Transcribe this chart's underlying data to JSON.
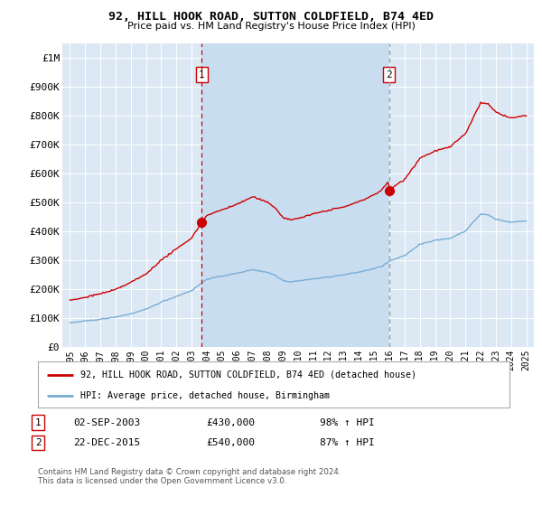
{
  "title": "92, HILL HOOK ROAD, SUTTON COLDFIELD, B74 4ED",
  "subtitle": "Price paid vs. HM Land Registry's House Price Index (HPI)",
  "legend_line1": "92, HILL HOOK ROAD, SUTTON COLDFIELD, B74 4ED (detached house)",
  "legend_line2": "HPI: Average price, detached house, Birmingham",
  "transaction1_date": "02-SEP-2003",
  "transaction1_price": "£430,000",
  "transaction1_hpi": "98% ↑ HPI",
  "transaction2_date": "22-DEC-2015",
  "transaction2_price": "£540,000",
  "transaction2_hpi": "87% ↑ HPI",
  "footer": "Contains HM Land Registry data © Crown copyright and database right 2024.\nThis data is licensed under the Open Government Licence v3.0.",
  "background_color": "#ffffff",
  "plot_bg_color": "#dce9f5",
  "plot_bg_between": "#c8ddf0",
  "grid_color": "#ffffff",
  "red_line_color": "#cc0000",
  "blue_line_color": "#7aadd4",
  "marker1_x": 2003.67,
  "marker1_y": 430000,
  "marker2_x": 2015.97,
  "marker2_y": 540000,
  "ylim_min": 0,
  "ylim_max": 1050000,
  "xlim_min": 1994.5,
  "xlim_max": 2025.5,
  "yticks": [
    0,
    100000,
    200000,
    300000,
    400000,
    500000,
    600000,
    700000,
    800000,
    900000,
    1000000
  ],
  "ytick_labels": [
    "£0",
    "£100K",
    "£200K",
    "£300K",
    "£400K",
    "£500K",
    "£600K",
    "£700K",
    "£800K",
    "£900K",
    "£1M"
  ],
  "xticks": [
    1995,
    1996,
    1997,
    1998,
    1999,
    2000,
    2001,
    2002,
    2003,
    2004,
    2005,
    2006,
    2007,
    2008,
    2009,
    2010,
    2011,
    2012,
    2013,
    2014,
    2015,
    2016,
    2017,
    2018,
    2019,
    2020,
    2021,
    2022,
    2023,
    2024,
    2025
  ]
}
